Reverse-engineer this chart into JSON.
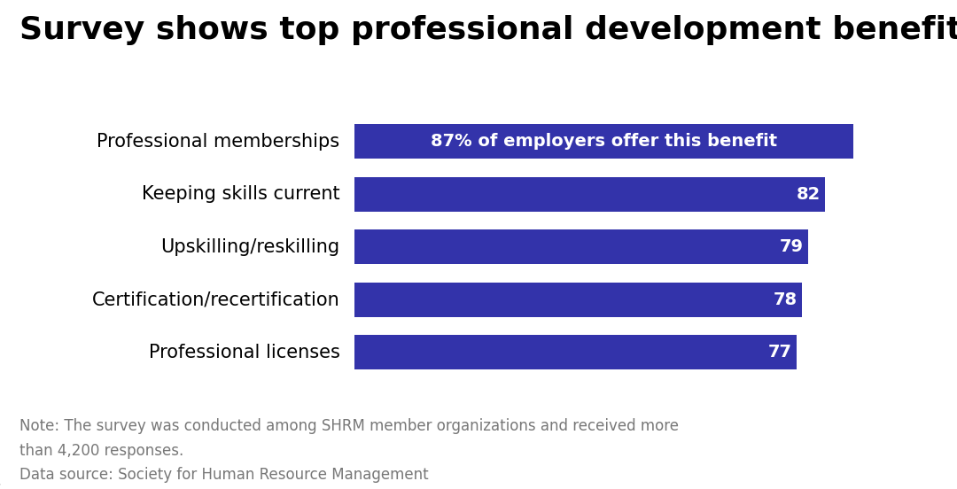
{
  "title": "Survey shows top professional development benefits",
  "categories": [
    "Professional licenses",
    "Certification/recertification",
    "Upskilling/reskilling",
    "Keeping skills current",
    "Professional memberships"
  ],
  "values": [
    77,
    78,
    79,
    82,
    87
  ],
  "bar_color": "#3333aa",
  "bar_labels": [
    "77",
    "78",
    "79",
    "82",
    "87% of employers offer this benefit"
  ],
  "label_color": "#ffffff",
  "background_color": "#ffffff",
  "note_line1": "Note: The survey was conducted among SHRM member organizations and received more",
  "note_line2": "than 4,200 responses.",
  "source_line": "Data source: Society for Human Resource Management",
  "note_color": "#777777",
  "title_fontsize": 26,
  "bar_label_fontsize": 14,
  "category_fontsize": 15,
  "note_fontsize": 12,
  "source_fontsize": 12,
  "bar_height": 0.65
}
